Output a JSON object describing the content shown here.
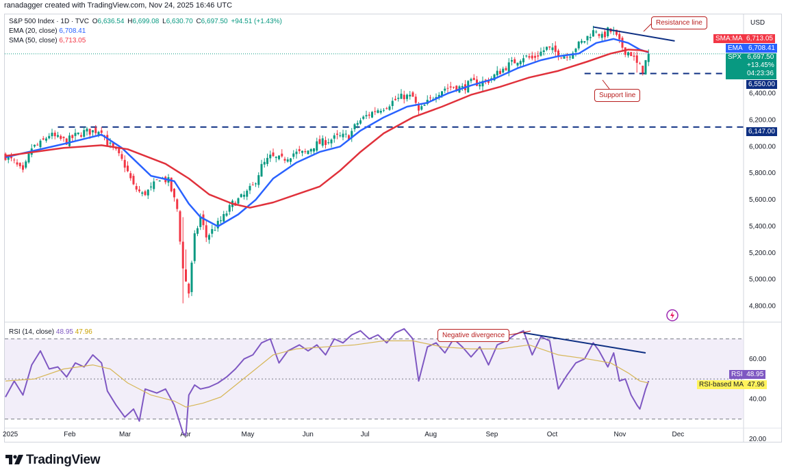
{
  "header": {
    "text": "ranadagger created with TradingView.com, Nov 24, 2025 16:46 UTC"
  },
  "legend": {
    "symbol": "S&P 500 Index · 1D · TVC",
    "ohlc": {
      "o_label": "O",
      "o": "6,636.54",
      "h_label": "H",
      "h": "6,699.08",
      "l_label": "L",
      "l": "6,630.70",
      "c_label": "C",
      "c": "6,697.50",
      "change": "+94.51 (+1.43%)"
    },
    "ema_label": "EMA (20, close)",
    "ema_value": "6,708.41",
    "sma_label": "SMA (50, close)",
    "sma_value": "6,713.05",
    "rsi_label": "RSI (14, close)",
    "rsi_value": "48.95",
    "rsi_ma_value": "47.96"
  },
  "currency": "USD",
  "price_tags": {
    "sma_label": "SMA:MA",
    "sma_value": "6,713.05",
    "ema_label": "EMA",
    "ema_value": "6,708.41",
    "spx_label": "SPX",
    "spx_value": "6,697.50",
    "spx_change": "+13.45%",
    "spx_countdown": "04:23:36",
    "support_value": "6,550.00",
    "lower_value": "6,147.00",
    "rsi_label": "RSI",
    "rsi_value": "48.95",
    "rsima_label": "RSI-based MA",
    "rsima_value": "47.96"
  },
  "annotations": {
    "resistance": "Resistance line",
    "support": "Support line",
    "divergence": "Negative divergence"
  },
  "footer": {
    "brand": "TradingView"
  },
  "colors": {
    "up": "#089981",
    "down": "#f23645",
    "ema": "#2962ff",
    "sma": "#e0313b",
    "rsi": "#7e57c2",
    "rsi_ma": "#d6b656",
    "level": "#0d2f82"
  },
  "chart_data": [
    {
      "type": "candlestick",
      "title": "S&P 500 Index · 1D · TVC",
      "ylim": [
        4700,
        7000
      ],
      "yticks": [
        4800,
        5000,
        5200,
        5400,
        5600,
        5800,
        6000,
        6200,
        6400
      ],
      "ytick_labels": [
        "4,800.00",
        "5,000.00",
        "5,200.00",
        "5,400.00",
        "5,600.00",
        "5,800.00",
        "6,000.00",
        "6,200.00",
        "6,400.00"
      ],
      "x_labels": [
        "2025",
        "Feb",
        "Mar",
        "Apr",
        "May",
        "Jun",
        "Jul",
        "Aug",
        "Sep",
        "Oct",
        "Nov",
        "Dec"
      ],
      "x_label_index": [
        0,
        21,
        40,
        61,
        82,
        103,
        123,
        145,
        166,
        187,
        210,
        230
      ],
      "horizontal_levels": [
        {
          "value": 6550,
          "label": "Support line"
        },
        {
          "value": 6147,
          "label": ""
        }
      ],
      "resistance_line": [
        [
          202,
          6900
        ],
        [
          230,
          6795
        ]
      ],
      "close_path": [
        [
          0,
          5930
        ],
        [
          3,
          5880
        ],
        [
          6,
          5800
        ],
        [
          9,
          5990
        ],
        [
          12,
          6020
        ],
        [
          15,
          6090
        ],
        [
          18,
          6060
        ],
        [
          21,
          6040
        ],
        [
          24,
          6080
        ],
        [
          27,
          6110
        ],
        [
          30,
          6115
        ],
        [
          33,
          6130
        ],
        [
          35,
          6030
        ],
        [
          38,
          5960
        ],
        [
          41,
          5860
        ],
        [
          44,
          5700
        ],
        [
          47,
          5640
        ],
        [
          50,
          5680
        ],
        [
          53,
          5770
        ],
        [
          56,
          5740
        ],
        [
          59,
          5530
        ],
        [
          61,
          5080
        ],
        [
          63,
          4900
        ],
        [
          65,
          5320
        ],
        [
          67,
          5470
        ],
        [
          69,
          5320
        ],
        [
          72,
          5390
        ],
        [
          75,
          5470
        ],
        [
          78,
          5570
        ],
        [
          82,
          5630
        ],
        [
          85,
          5700
        ],
        [
          88,
          5850
        ],
        [
          91,
          5920
        ],
        [
          95,
          5900
        ],
        [
          99,
          5950
        ],
        [
          103,
          5950
        ],
        [
          106,
          6010
        ],
        [
          110,
          6040
        ],
        [
          114,
          6070
        ],
        [
          118,
          6080
        ],
        [
          121,
          6180
        ],
        [
          124,
          6230
        ],
        [
          127,
          6270
        ],
        [
          130,
          6300
        ],
        [
          134,
          6350
        ],
        [
          137,
          6380
        ],
        [
          140,
          6370
        ],
        [
          142,
          6260
        ],
        [
          145,
          6330
        ],
        [
          148,
          6400
        ],
        [
          151,
          6440
        ],
        [
          154,
          6450
        ],
        [
          157,
          6440
        ],
        [
          160,
          6480
        ],
        [
          163,
          6480
        ],
        [
          166,
          6500
        ],
        [
          169,
          6550
        ],
        [
          172,
          6600
        ],
        [
          175,
          6640
        ],
        [
          178,
          6680
        ],
        [
          181,
          6660
        ],
        [
          184,
          6710
        ],
        [
          186,
          6740
        ],
        [
          188,
          6720
        ],
        [
          190,
          6700
        ],
        [
          193,
          6680
        ],
        [
          196,
          6750
        ],
        [
          199,
          6800
        ],
        [
          201,
          6850
        ],
        [
          203,
          6880
        ],
        [
          205,
          6820
        ],
        [
          207,
          6870
        ],
        [
          209,
          6860
        ],
        [
          211,
          6780
        ],
        [
          213,
          6720
        ],
        [
          215,
          6700
        ],
        [
          217,
          6620
        ],
        [
          219,
          6580
        ],
        [
          220,
          6640
        ],
        [
          221,
          6700
        ]
      ],
      "series": [
        {
          "name": "EMA (20, close)",
          "points": [
            [
              0,
              5920
            ],
            [
              20,
              6020
            ],
            [
              33,
              6090
            ],
            [
              40,
              5990
            ],
            [
              50,
              5780
            ],
            [
              58,
              5740
            ],
            [
              63,
              5570
            ],
            [
              67,
              5470
            ],
            [
              73,
              5400
            ],
            [
              80,
              5490
            ],
            [
              86,
              5600
            ],
            [
              92,
              5760
            ],
            [
              100,
              5880
            ],
            [
              108,
              5960
            ],
            [
              115,
              6000
            ],
            [
              122,
              6120
            ],
            [
              130,
              6220
            ],
            [
              138,
              6300
            ],
            [
              145,
              6330
            ],
            [
              152,
              6400
            ],
            [
              160,
              6460
            ],
            [
              168,
              6510
            ],
            [
              176,
              6590
            ],
            [
              184,
              6650
            ],
            [
              190,
              6680
            ],
            [
              197,
              6700
            ],
            [
              203,
              6780
            ],
            [
              209,
              6810
            ],
            [
              214,
              6780
            ],
            [
              218,
              6730
            ],
            [
              221,
              6708
            ]
          ]
        },
        {
          "name": "SMA (50, close)",
          "points": [
            [
              0,
              5930
            ],
            [
              20,
              5990
            ],
            [
              33,
              6010
            ],
            [
              42,
              5980
            ],
            [
              55,
              5870
            ],
            [
              63,
              5760
            ],
            [
              70,
              5640
            ],
            [
              78,
              5570
            ],
            [
              84,
              5540
            ],
            [
              92,
              5580
            ],
            [
              100,
              5640
            ],
            [
              108,
              5700
            ],
            [
              115,
              5820
            ],
            [
              122,
              5960
            ],
            [
              130,
              6100
            ],
            [
              140,
              6220
            ],
            [
              150,
              6300
            ],
            [
              160,
              6390
            ],
            [
              170,
              6450
            ],
            [
              180,
              6520
            ],
            [
              190,
              6570
            ],
            [
              200,
              6640
            ],
            [
              208,
              6700
            ],
            [
              214,
              6730
            ],
            [
              218,
              6725
            ],
            [
              221,
              6713
            ]
          ]
        }
      ]
    },
    {
      "type": "line",
      "title": "RSI (14, close)",
      "ylim": [
        18,
        78
      ],
      "yticks": [
        20,
        40,
        60
      ],
      "ytick_labels": [
        "20.00",
        "40.00",
        "60.00"
      ],
      "bands": [
        30,
        50,
        70
      ],
      "divergence_line": [
        [
          178,
          73
        ],
        [
          220,
          63
        ]
      ],
      "series": [
        {
          "name": "RSI (14, close)",
          "values": [
            [
              0,
              41
            ],
            [
              3,
              49
            ],
            [
              6,
              42
            ],
            [
              9,
              57
            ],
            [
              12,
              64
            ],
            [
              15,
              55
            ],
            [
              18,
              56
            ],
            [
              21,
              51
            ],
            [
              24,
              58
            ],
            [
              27,
              56
            ],
            [
              30,
              62
            ],
            [
              33,
              58
            ],
            [
              35,
              44
            ],
            [
              38,
              37
            ],
            [
              41,
              31
            ],
            [
              44,
              35
            ],
            [
              46,
              29
            ],
            [
              48,
              45
            ],
            [
              52,
              43
            ],
            [
              55,
              45
            ],
            [
              58,
              37
            ],
            [
              61,
              23
            ],
            [
              62,
              22
            ],
            [
              63,
              42
            ],
            [
              65,
              47
            ],
            [
              67,
              45
            ],
            [
              70,
              46
            ],
            [
              73,
              48
            ],
            [
              76,
              51
            ],
            [
              79,
              55
            ],
            [
              82,
              60
            ],
            [
              85,
              62
            ],
            [
              88,
              68
            ],
            [
              91,
              70
            ],
            [
              94,
              58
            ],
            [
              97,
              64
            ],
            [
              101,
              67
            ],
            [
              104,
              64
            ],
            [
              107,
              67
            ],
            [
              110,
              62
            ],
            [
              113,
              70
            ],
            [
              116,
              68
            ],
            [
              119,
              72
            ],
            [
              122,
              74
            ],
            [
              125,
              70
            ],
            [
              128,
              72
            ],
            [
              131,
              68
            ],
            [
              134,
              73
            ],
            [
              137,
              75
            ],
            [
              140,
              70
            ],
            [
              142,
              49
            ],
            [
              145,
              66
            ],
            [
              148,
              68
            ],
            [
              151,
              63
            ],
            [
              154,
              70
            ],
            [
              157,
              66
            ],
            [
              160,
              61
            ],
            [
              163,
              66
            ],
            [
              166,
              57
            ],
            [
              169,
              67
            ],
            [
              172,
              69
            ],
            [
              175,
              72
            ],
            [
              178,
              74
            ],
            [
              181,
              62
            ],
            [
              184,
              71
            ],
            [
              187,
              69
            ],
            [
              190,
              45
            ],
            [
              193,
              52
            ],
            [
              196,
              58
            ],
            [
              199,
              60
            ],
            [
              202,
              68
            ],
            [
              204,
              64
            ],
            [
              207,
              56
            ],
            [
              209,
              63
            ],
            [
              211,
              49
            ],
            [
              213,
              50
            ],
            [
              215,
              42
            ],
            [
              217,
              37
            ],
            [
              218,
              35
            ],
            [
              220,
              45
            ],
            [
              221,
              49
            ]
          ]
        },
        {
          "name": "RSI-based MA",
          "values": [
            [
              0,
              49
            ],
            [
              10,
              50
            ],
            [
              20,
              55
            ],
            [
              30,
              57
            ],
            [
              36,
              55
            ],
            [
              42,
              48
            ],
            [
              50,
              42
            ],
            [
              58,
              39
            ],
            [
              62,
              36
            ],
            [
              68,
              38
            ],
            [
              74,
              41
            ],
            [
              80,
              48
            ],
            [
              86,
              55
            ],
            [
              92,
              62
            ],
            [
              100,
              65
            ],
            [
              110,
              66
            ],
            [
              120,
              67
            ],
            [
              130,
              69
            ],
            [
              140,
              69
            ],
            [
              150,
              66
            ],
            [
              160,
              65
            ],
            [
              170,
              65
            ],
            [
              180,
              67
            ],
            [
              190,
              62
            ],
            [
              200,
              60
            ],
            [
              208,
              58
            ],
            [
              214,
              53
            ],
            [
              218,
              49
            ],
            [
              221,
              48
            ]
          ]
        }
      ]
    }
  ]
}
